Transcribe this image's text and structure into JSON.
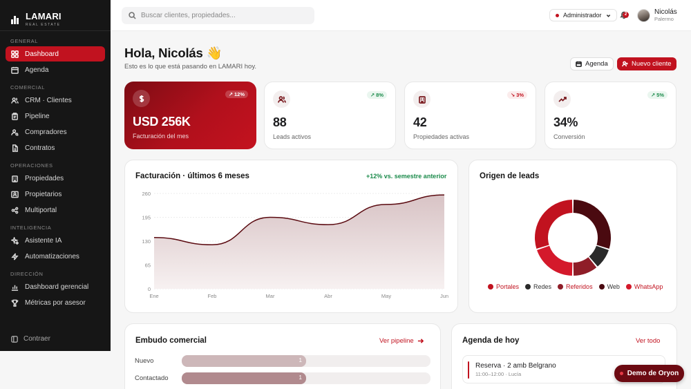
{
  "brand": {
    "name": "LAMARI",
    "sub": "REAL ESTATE"
  },
  "sidebar": {
    "sections": [
      {
        "title": "GENERAL",
        "items": [
          {
            "label": "Dashboard",
            "icon": "grid-icon",
            "active": true
          },
          {
            "label": "Agenda",
            "icon": "calendar-icon"
          }
        ]
      },
      {
        "title": "COMERCIAL",
        "items": [
          {
            "label": "CRM · Clientes",
            "icon": "users-icon"
          },
          {
            "label": "Pipeline",
            "icon": "clipboard-icon"
          },
          {
            "label": "Compradores",
            "icon": "user-search-icon"
          },
          {
            "label": "Contratos",
            "icon": "document-icon"
          }
        ]
      },
      {
        "title": "OPERACIONES",
        "items": [
          {
            "label": "Propiedades",
            "icon": "building-icon"
          },
          {
            "label": "Propietarios",
            "icon": "id-card-icon"
          },
          {
            "label": "Multiportal",
            "icon": "share-icon"
          }
        ]
      },
      {
        "title": "INTELIGENCIA",
        "items": [
          {
            "label": "Asistente IA",
            "icon": "sparkles-icon"
          },
          {
            "label": "Automatizaciones",
            "icon": "bolt-icon"
          }
        ]
      },
      {
        "title": "DIRECCIÓN",
        "items": [
          {
            "label": "Dashboard gerencial",
            "icon": "bar-chart-icon"
          },
          {
            "label": "Métricas por asesor",
            "icon": "trophy-icon"
          }
        ]
      }
    ],
    "footer": "Contraer"
  },
  "topbar": {
    "search_placeholder": "Buscar clientes, propiedades...",
    "role": "Administrador",
    "notifications": "2",
    "user_name": "Nicolás",
    "user_location": "Palermo"
  },
  "header": {
    "greeting": "Hola, Nicolás 👋",
    "subtitle": "Esto es lo que está pasando en LAMARI hoy.",
    "agenda_button": "Agenda",
    "new_client_button": "Nuevo cliente"
  },
  "kpis": [
    {
      "value": "USD 256K",
      "label": "Facturación del mes",
      "delta": "12%",
      "direction": "up",
      "icon": "dollar-icon"
    },
    {
      "value": "88",
      "label": "Leads activos",
      "delta": "8%",
      "direction": "up",
      "icon": "users-icon"
    },
    {
      "value": "42",
      "label": "Propiedades activas",
      "delta": "3%",
      "direction": "down",
      "icon": "building-icon"
    },
    {
      "value": "34%",
      "label": "Conversión",
      "delta": "5%",
      "direction": "up",
      "icon": "trending-up-icon"
    }
  ],
  "revenue_panel": {
    "title": "Facturación · últimos 6 meses",
    "note": "+12% vs. semestre anterior"
  },
  "leads_panel": {
    "title": "Origen de leads"
  },
  "funnel_panel": {
    "title": "Embudo comercial",
    "link": "Ver pipeline",
    "rows": [
      {
        "label": "Nuevo",
        "value": "1",
        "fraction": 0.5,
        "color": "#cdb7b9"
      },
      {
        "label": "Contactado",
        "value": "1",
        "fraction": 0.5,
        "color": "#b18a8e"
      }
    ]
  },
  "agenda_panel": {
    "title": "Agenda de hoy",
    "link": "Ver todo",
    "items": [
      {
        "title": "Reserva · 2 amb Belgrano",
        "subtitle": "11:00–12:00 · Lucía"
      }
    ]
  },
  "demo_button": "Demo de Oryon",
  "chart_data": [
    {
      "type": "area",
      "title": "Facturación · últimos 6 meses",
      "categories": [
        "Ene",
        "Feb",
        "Mar",
        "Abr",
        "May",
        "Jun"
      ],
      "series": [
        {
          "values": [
            140,
            120,
            195,
            175,
            230,
            256
          ]
        }
      ],
      "yticks": [
        "0",
        "65",
        "130",
        "195",
        "260"
      ],
      "ylim": [
        0,
        260
      ],
      "grid": true,
      "colors": {
        "line": "#5a0a10",
        "fill_top": "#d8c3c5",
        "fill_bottom": "#f7f1f1"
      }
    },
    {
      "type": "pie",
      "title": "Origen de leads",
      "categories": [
        "Portales",
        "Redes",
        "Referidos",
        "Web",
        "WhatsApp"
      ],
      "values": [
        30,
        9,
        11,
        30,
        20
      ],
      "colors": [
        "#c1121f",
        "#2a2a2a",
        "#8f1d28",
        "#4a0a10",
        "#d4192b"
      ],
      "order_clockwise_from_top": [
        "Web",
        "Redes",
        "Referidos",
        "WhatsApp",
        "Portales"
      ],
      "legend": "bottom"
    }
  ]
}
